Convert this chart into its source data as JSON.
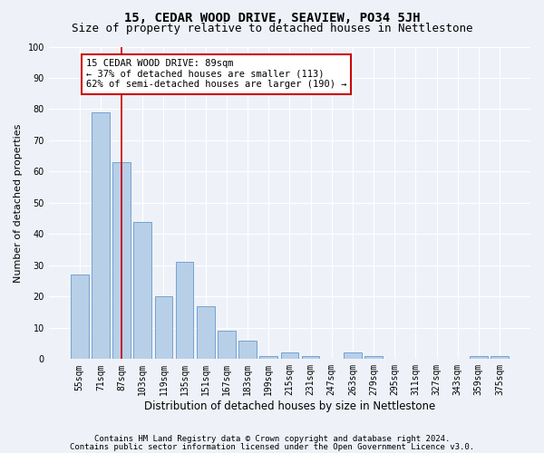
{
  "title": "15, CEDAR WOOD DRIVE, SEAVIEW, PO34 5JH",
  "subtitle": "Size of property relative to detached houses in Nettlestone",
  "xlabel": "Distribution of detached houses by size in Nettlestone",
  "ylabel": "Number of detached properties",
  "categories": [
    "55sqm",
    "71sqm",
    "87sqm",
    "103sqm",
    "119sqm",
    "135sqm",
    "151sqm",
    "167sqm",
    "183sqm",
    "199sqm",
    "215sqm",
    "231sqm",
    "247sqm",
    "263sqm",
    "279sqm",
    "295sqm",
    "311sqm",
    "327sqm",
    "343sqm",
    "359sqm",
    "375sqm"
  ],
  "values": [
    27,
    79,
    63,
    44,
    20,
    31,
    17,
    9,
    6,
    1,
    2,
    1,
    0,
    2,
    1,
    0,
    0,
    0,
    0,
    1,
    1
  ],
  "bar_color": "#b8cfe8",
  "bar_edge_color": "#6699cc",
  "vline_x_index": 2,
  "vline_color": "#cc0000",
  "annotation_text": "15 CEDAR WOOD DRIVE: 89sqm\n← 37% of detached houses are smaller (113)\n62% of semi-detached houses are larger (190) →",
  "annotation_box_facecolor": "#ffffff",
  "annotation_box_edgecolor": "#cc0000",
  "ylim": [
    0,
    100
  ],
  "yticks": [
    0,
    10,
    20,
    30,
    40,
    50,
    60,
    70,
    80,
    90,
    100
  ],
  "footer1": "Contains HM Land Registry data © Crown copyright and database right 2024.",
  "footer2": "Contains public sector information licensed under the Open Government Licence v3.0.",
  "bg_color": "#eef2f8",
  "plot_bg_color": "#eef2f8",
  "grid_color": "#ffffff",
  "title_fontsize": 10,
  "subtitle_fontsize": 9,
  "xlabel_fontsize": 8.5,
  "ylabel_fontsize": 8,
  "tick_fontsize": 7,
  "annotation_fontsize": 7.5,
  "footer_fontsize": 6.5
}
